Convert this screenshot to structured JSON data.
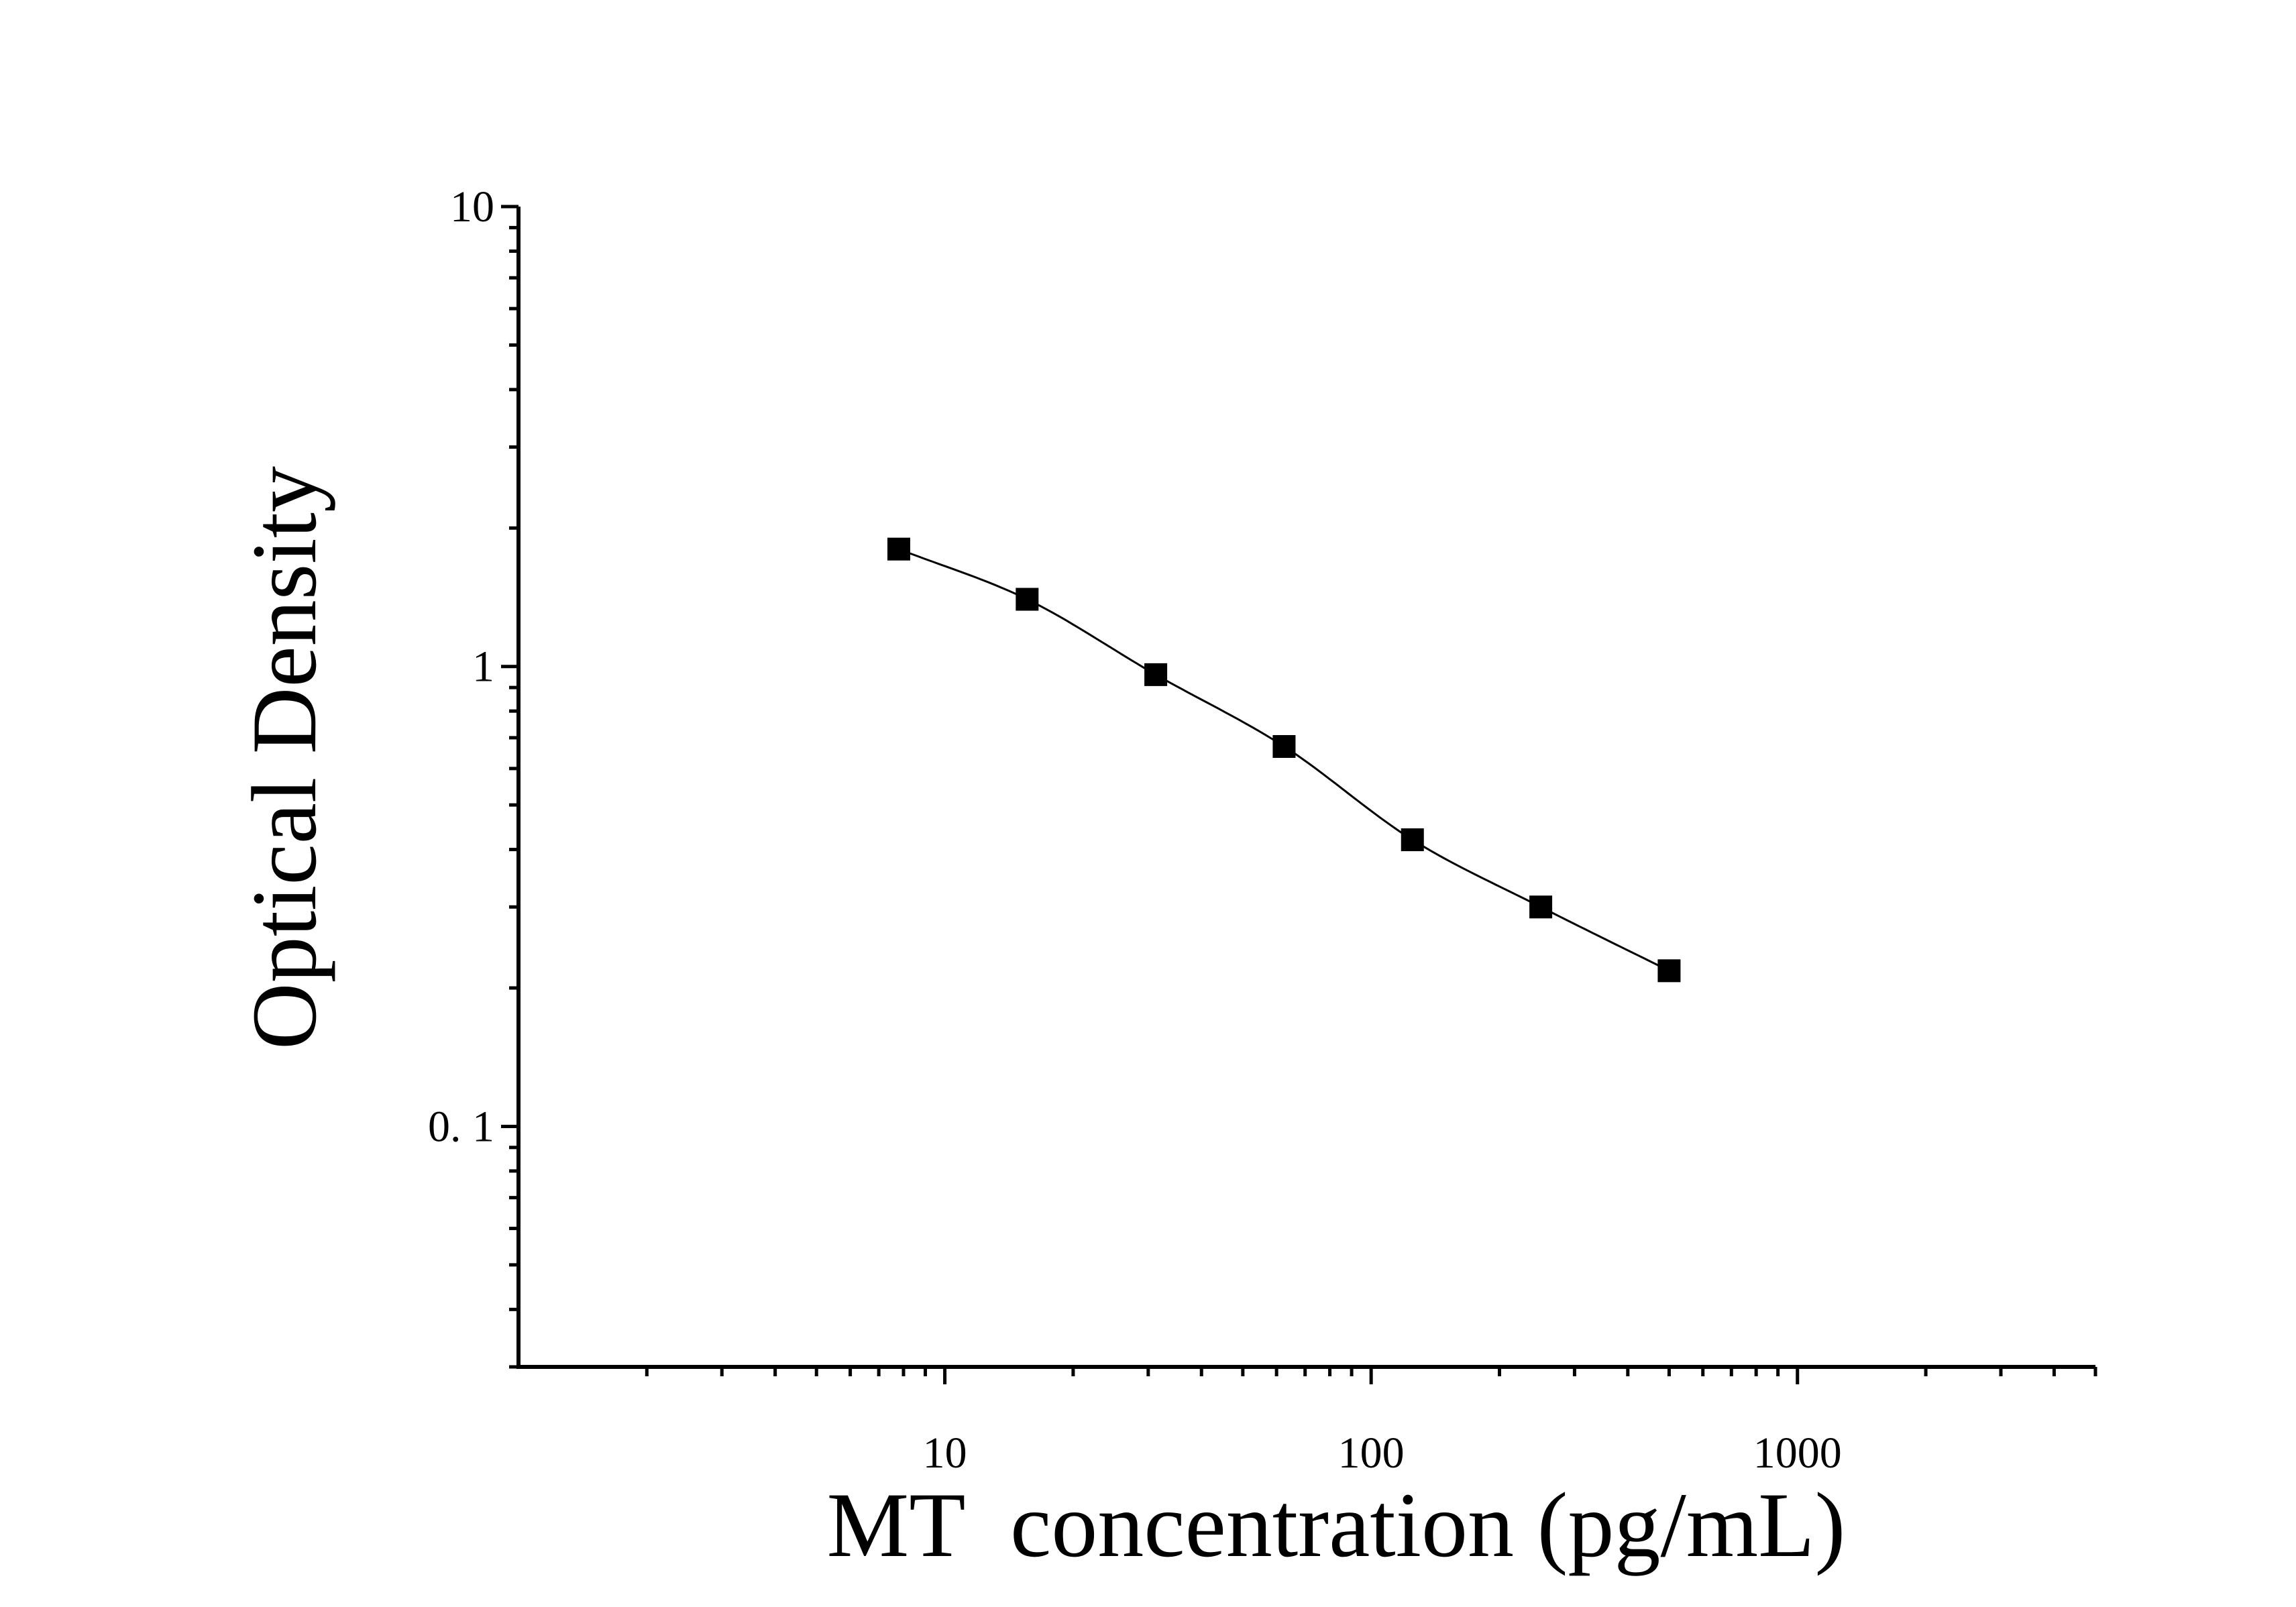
{
  "chart_data": {
    "type": "scatter",
    "title": "",
    "xlabel": "MT  concentration (pg/mL)",
    "ylabel": "Optical Density",
    "x_scale": "log",
    "y_scale": "log",
    "xlim": [
      1,
      5000
    ],
    "ylim": [
      0.03,
      10
    ],
    "x_ticks": [
      {
        "value": 10,
        "label": "10"
      },
      {
        "value": 100,
        "label": "100"
      },
      {
        "value": 1000,
        "label": "1000"
      }
    ],
    "y_ticks": [
      {
        "value": 0.1,
        "label": "0. 1"
      },
      {
        "value": 1,
        "label": "1"
      },
      {
        "value": 10,
        "label": "10"
      }
    ],
    "grid": false,
    "legend": "none",
    "marker": "square",
    "color": "#000000",
    "fit_curve": true,
    "series": [
      {
        "x": [
          7.8,
          15.6,
          31.25,
          62.5,
          125,
          250,
          500
        ],
        "y": [
          1.8,
          1.4,
          0.96,
          0.67,
          0.42,
          0.3,
          0.218
        ]
      }
    ]
  }
}
